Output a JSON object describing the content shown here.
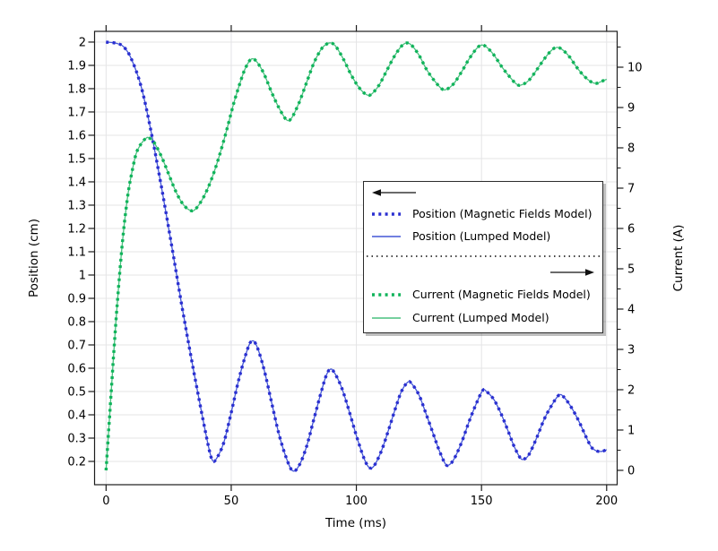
{
  "axes": {
    "x": {
      "label": "Time (ms)"
    },
    "y_left": {
      "label": "Position (cm)"
    },
    "y_right": {
      "label": "Current (A)"
    }
  },
  "colors": {
    "grid": "#e4e4e6",
    "axis": "#1c1c1c",
    "text": "#000000",
    "legend_border": "#2b2b2b",
    "arrow": "#111111",
    "background": "#ffffff"
  },
  "legend": {
    "entries": [
      {
        "label": "Position (Magnetic Fields Model)",
        "style": "dotted",
        "color": "#2a2fd0"
      },
      {
        "label": "Position (Lumped Model)",
        "style": "solid",
        "color": "#4356d6"
      },
      {
        "label": "Current (Magnetic Fields Model)",
        "style": "dotted",
        "color": "#0fb35a"
      },
      {
        "label": "Current (Lumped Model)",
        "style": "solid",
        "color": "#49c07e"
      }
    ]
  },
  "chart_data": {
    "type": "line",
    "title": "",
    "xlabel": "Time (ms)",
    "ylabel_left": "Position (cm)",
    "ylabel_right": "Current (A)",
    "grid": true,
    "x_ticks": [
      0,
      50,
      100,
      150,
      200
    ],
    "y_left_ticks": [
      "0.2",
      "0.3",
      "0.4",
      "0.5",
      "0.6",
      "0.7",
      "0.8",
      "0.9",
      "1",
      "1.1",
      "1.2",
      "1.3",
      "1.4",
      "1.5",
      "1.6",
      "1.7",
      "1.8",
      "1.9",
      "2"
    ],
    "y_right_ticks": [
      0,
      1,
      2,
      3,
      4,
      5,
      6,
      7,
      8,
      9,
      10
    ],
    "y_right_minor_step": 0.5,
    "x_range": [
      -4.6,
      204.2
    ],
    "y_left_range": [
      0.1,
      2.046
    ],
    "y_right_range": [
      -0.356,
      10.889
    ],
    "series": [
      {
        "name": "Position (Magnetic Fields Model)",
        "axis": "left",
        "style": "dotted",
        "color": "#2a2fd0",
        "data": "position"
      },
      {
        "name": "Position (Lumped Model)",
        "axis": "left",
        "style": "solid",
        "color": "#4356d6",
        "data": "position"
      },
      {
        "name": "Current (Magnetic Fields Model)",
        "axis": "right",
        "style": "dotted",
        "color": "#0fb35a",
        "data": "current"
      },
      {
        "name": "Current (Lumped Model)",
        "axis": "right",
        "style": "solid",
        "color": "#49c07e",
        "data": "current"
      }
    ],
    "points": {
      "position": [
        [
          0,
          2
        ],
        [
          4,
          1.995
        ],
        [
          7,
          1.98
        ],
        [
          10,
          1.93
        ],
        [
          14,
          1.81
        ],
        [
          18,
          1.615
        ],
        [
          22,
          1.385
        ],
        [
          26,
          1.14
        ],
        [
          30,
          0.885
        ],
        [
          34,
          0.645
        ],
        [
          38,
          0.42
        ],
        [
          41,
          0.26
        ],
        [
          42.5,
          0.205
        ],
        [
          44,
          0.21
        ],
        [
          47,
          0.28
        ],
        [
          50,
          0.41
        ],
        [
          53,
          0.55
        ],
        [
          56,
          0.665
        ],
        [
          58,
          0.715
        ],
        [
          60,
          0.7
        ],
        [
          63,
          0.6
        ],
        [
          66,
          0.46
        ],
        [
          69,
          0.32
        ],
        [
          72,
          0.215
        ],
        [
          74.5,
          0.16
        ],
        [
          77,
          0.18
        ],
        [
          80,
          0.26
        ],
        [
          83,
          0.38
        ],
        [
          86,
          0.5
        ],
        [
          88,
          0.57
        ],
        [
          89.5,
          0.595
        ],
        [
          91,
          0.585
        ],
        [
          94,
          0.52
        ],
        [
          97,
          0.42
        ],
        [
          100,
          0.31
        ],
        [
          103,
          0.215
        ],
        [
          105,
          0.175
        ],
        [
          107,
          0.18
        ],
        [
          110,
          0.245
        ],
        [
          113,
          0.34
        ],
        [
          116,
          0.44
        ],
        [
          118,
          0.5
        ],
        [
          120.5,
          0.54
        ],
        [
          122,
          0.535
        ],
        [
          125,
          0.485
        ],
        [
          128,
          0.4
        ],
        [
          131,
          0.31
        ],
        [
          133,
          0.25
        ],
        [
          135.5,
          0.19
        ],
        [
          137,
          0.185
        ],
        [
          139,
          0.21
        ],
        [
          142,
          0.28
        ],
        [
          145,
          0.37
        ],
        [
          148,
          0.45
        ],
        [
          150.5,
          0.505
        ],
        [
          152,
          0.5
        ],
        [
          155,
          0.465
        ],
        [
          158,
          0.4
        ],
        [
          161,
          0.32
        ],
        [
          163,
          0.265
        ],
        [
          165.5,
          0.215
        ],
        [
          167,
          0.21
        ],
        [
          169,
          0.23
        ],
        [
          172,
          0.3
        ],
        [
          175,
          0.38
        ],
        [
          178,
          0.44
        ],
        [
          181,
          0.485
        ],
        [
          183,
          0.475
        ],
        [
          186,
          0.43
        ],
        [
          189,
          0.37
        ],
        [
          192,
          0.3
        ],
        [
          194,
          0.26
        ],
        [
          196,
          0.245
        ],
        [
          198,
          0.243
        ],
        [
          200,
          0.25
        ]
      ],
      "current": [
        [
          0,
          0
        ],
        [
          1,
          0.95
        ],
        [
          2,
          1.9
        ],
        [
          3,
          2.85
        ],
        [
          4,
          3.75
        ],
        [
          5,
          4.55
        ],
        [
          6,
          5.3
        ],
        [
          7,
          5.95
        ],
        [
          8,
          6.5
        ],
        [
          9,
          6.95
        ],
        [
          10,
          7.3
        ],
        [
          12,
          7.85
        ],
        [
          14,
          8.1
        ],
        [
          16,
          8.24
        ],
        [
          17,
          8.25
        ],
        [
          19,
          8.15
        ],
        [
          22,
          7.8
        ],
        [
          25,
          7.35
        ],
        [
          28,
          6.9
        ],
        [
          31,
          6.58
        ],
        [
          34,
          6.44
        ],
        [
          36,
          6.5
        ],
        [
          39,
          6.78
        ],
        [
          42,
          7.2
        ],
        [
          45,
          7.75
        ],
        [
          48,
          8.4
        ],
        [
          51,
          9.1
        ],
        [
          54,
          9.7
        ],
        [
          56,
          10.02
        ],
        [
          58,
          10.2
        ],
        [
          60,
          10.15
        ],
        [
          63,
          9.85
        ],
        [
          66,
          9.4
        ],
        [
          69,
          9
        ],
        [
          72,
          8.7
        ],
        [
          74,
          8.73
        ],
        [
          77,
          9.1
        ],
        [
          80,
          9.6
        ],
        [
          83,
          10.1
        ],
        [
          86,
          10.45
        ],
        [
          88,
          10.57
        ],
        [
          90,
          10.6
        ],
        [
          92,
          10.5
        ],
        [
          95,
          10.18
        ],
        [
          98,
          9.8
        ],
        [
          101,
          9.5
        ],
        [
          104,
          9.32
        ],
        [
          106,
          9.33
        ],
        [
          109,
          9.55
        ],
        [
          112,
          9.9
        ],
        [
          115,
          10.25
        ],
        [
          118,
          10.52
        ],
        [
          120,
          10.6
        ],
        [
          122,
          10.55
        ],
        [
          125,
          10.3
        ],
        [
          128,
          9.95
        ],
        [
          131,
          9.68
        ],
        [
          134,
          9.47
        ],
        [
          136,
          9.45
        ],
        [
          139,
          9.6
        ],
        [
          142,
          9.88
        ],
        [
          145,
          10.2
        ],
        [
          148,
          10.46
        ],
        [
          150,
          10.55
        ],
        [
          152,
          10.5
        ],
        [
          155,
          10.3
        ],
        [
          158,
          10.02
        ],
        [
          161,
          9.78
        ],
        [
          164,
          9.58
        ],
        [
          166,
          9.56
        ],
        [
          169,
          9.68
        ],
        [
          172,
          9.93
        ],
        [
          175,
          10.2
        ],
        [
          178,
          10.42
        ],
        [
          180,
          10.49
        ],
        [
          182,
          10.45
        ],
        [
          185,
          10.27
        ],
        [
          188,
          10
        ],
        [
          191,
          9.78
        ],
        [
          194,
          9.63
        ],
        [
          196,
          9.6
        ],
        [
          198,
          9.65
        ],
        [
          200,
          9.7
        ]
      ]
    }
  }
}
